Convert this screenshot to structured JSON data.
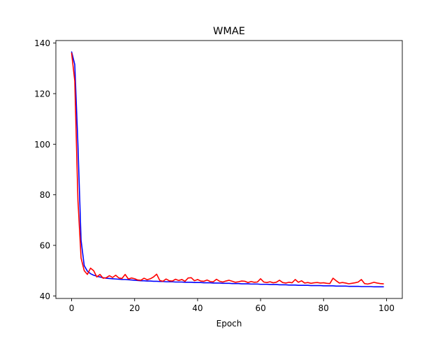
{
  "chart_data": {
    "type": "line",
    "title": "WMAE",
    "xlabel": "Epoch",
    "ylabel": "",
    "xlim": [
      -5,
      105
    ],
    "ylim": [
      39,
      141
    ],
    "xticks": [
      0,
      20,
      40,
      60,
      80,
      100
    ],
    "yticks": [
      40,
      60,
      80,
      100,
      120,
      140
    ],
    "grid": false,
    "legend": "none",
    "series": [
      {
        "color": "#0000ff",
        "x": [
          0,
          1,
          2,
          3,
          4,
          5,
          6,
          7,
          8,
          9,
          10,
          11,
          12,
          13,
          14,
          15,
          16,
          17,
          18,
          19,
          20,
          21,
          22,
          23,
          24,
          25,
          26,
          27,
          28,
          29,
          30,
          31,
          32,
          33,
          34,
          35,
          36,
          37,
          38,
          39,
          40,
          41,
          42,
          43,
          44,
          45,
          46,
          47,
          48,
          49,
          50,
          51,
          52,
          53,
          54,
          55,
          56,
          57,
          58,
          59,
          60,
          61,
          62,
          63,
          64,
          65,
          66,
          67,
          68,
          69,
          70,
          71,
          72,
          73,
          74,
          75,
          76,
          77,
          78,
          79,
          80,
          81,
          82,
          83,
          84,
          85,
          86,
          87,
          88,
          89,
          90,
          91,
          92,
          93,
          94,
          95,
          96,
          97,
          98,
          99
        ],
        "values": [
          136.5,
          131.5,
          100,
          62,
          52,
          49.8,
          48.8,
          48.2,
          47.8,
          47.5,
          47.2,
          47.0,
          46.9,
          46.8,
          46.7,
          46.6,
          46.5,
          46.5,
          46.4,
          46.3,
          46.2,
          46.1,
          46.0,
          46.0,
          45.9,
          45.9,
          45.8,
          45.8,
          45.7,
          45.7,
          45.6,
          45.6,
          45.6,
          45.5,
          45.5,
          45.5,
          45.4,
          45.4,
          45.4,
          45.3,
          45.3,
          45.3,
          45.2,
          45.2,
          45.2,
          45.1,
          45.1,
          45.1,
          45.0,
          45.0,
          45.0,
          44.9,
          44.9,
          44.9,
          44.8,
          44.8,
          44.8,
          44.7,
          44.7,
          44.7,
          44.6,
          44.6,
          44.6,
          44.5,
          44.5,
          44.5,
          44.4,
          44.4,
          44.4,
          44.3,
          44.3,
          44.3,
          44.2,
          44.2,
          44.2,
          44.2,
          44.1,
          44.1,
          44.1,
          44.1,
          44.0,
          44.0,
          44.0,
          44.0,
          43.9,
          43.9,
          43.9,
          43.9,
          43.8,
          43.8,
          43.8,
          43.8,
          43.7,
          43.7,
          43.7,
          43.7,
          43.6,
          43.6,
          43.6,
          43.6
        ]
      },
      {
        "color": "#ff0000",
        "x": [
          0,
          1,
          2,
          3,
          4,
          5,
          6,
          7,
          8,
          9,
          10,
          11,
          12,
          13,
          14,
          15,
          16,
          17,
          18,
          19,
          20,
          21,
          22,
          23,
          24,
          25,
          26,
          27,
          28,
          29,
          30,
          31,
          32,
          33,
          34,
          35,
          36,
          37,
          38,
          39,
          40,
          41,
          42,
          43,
          44,
          45,
          46,
          47,
          48,
          49,
          50,
          51,
          52,
          53,
          54,
          55,
          56,
          57,
          58,
          59,
          60,
          61,
          62,
          63,
          64,
          65,
          66,
          67,
          68,
          69,
          70,
          71,
          72,
          73,
          74,
          75,
          76,
          77,
          78,
          79,
          80,
          81,
          82,
          83,
          84,
          85,
          86,
          87,
          88,
          89,
          90,
          91,
          92,
          93,
          94,
          95,
          96,
          97,
          98,
          99
        ],
        "values": [
          136,
          125,
          78,
          55,
          50,
          48.5,
          51,
          50,
          47.5,
          48.5,
          47,
          47.2,
          48,
          47.3,
          48.2,
          47.1,
          46.9,
          48.5,
          46.7,
          47.1,
          46.8,
          46.3,
          46.2,
          47,
          46.4,
          46.8,
          47.5,
          48.6,
          46.1,
          45.8,
          46.7,
          46,
          45.9,
          46.6,
          46.1,
          46.5,
          45.8,
          47.1,
          47.2,
          46,
          46.5,
          45.9,
          45.8,
          46.3,
          45.7,
          45.6,
          46.6,
          45.8,
          45.5,
          45.9,
          46.2,
          45.8,
          45.4,
          45.6,
          45.9,
          45.8,
          45.3,
          45.7,
          45.4,
          45.5,
          46.8,
          45.5,
          45.3,
          45.6,
          45.2,
          45.4,
          46.2,
          45.3,
          45.1,
          45.4,
          45.2,
          46.5,
          45.4,
          46,
          45.1,
          45.3,
          45,
          45.2,
          45.3,
          45.1,
          45.2,
          45.0,
          44.9,
          47.0,
          46.0,
          45.1,
          45.3,
          45.1,
          44.8,
          45.0,
          45.2,
          45.5,
          46.5,
          44.9,
          44.7,
          45.0,
          45.4,
          45.1,
          44.9,
          44.8
        ]
      }
    ]
  }
}
